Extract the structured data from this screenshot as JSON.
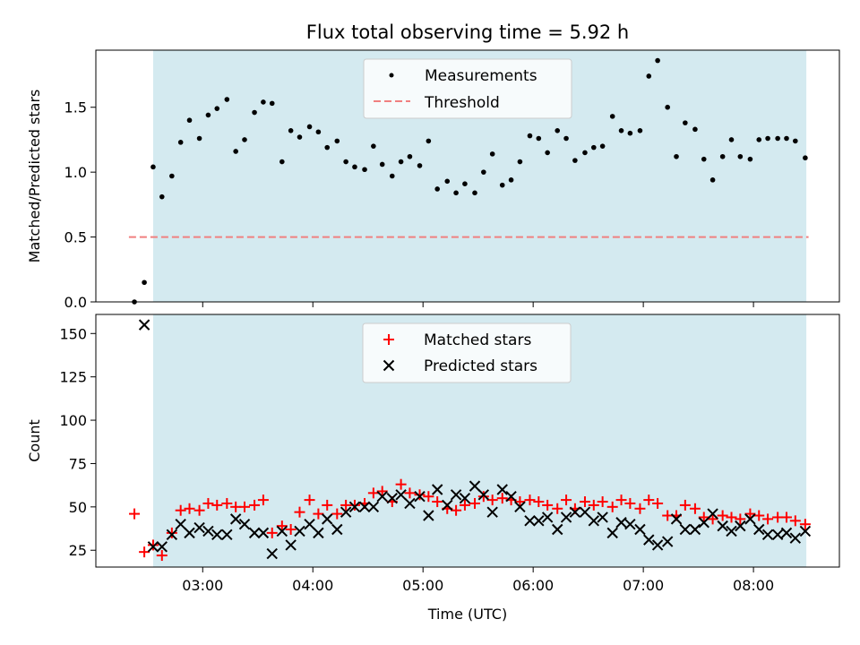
{
  "chart_data": [
    {
      "type": "scatter",
      "title": "Flux total observing time = 5.92 h",
      "xlabel": "",
      "ylabel": "Matched/Predicted stars",
      "xlim": [
        2.03,
        8.78
      ],
      "ylim": [
        0.0,
        1.94
      ],
      "xticks": [
        3,
        4,
        5,
        6,
        7,
        8
      ],
      "yticks": [
        {
          "value": 0.0,
          "label": "0.0"
        },
        {
          "value": 0.5,
          "label": "0.5"
        },
        {
          "value": 1.0,
          "label": "1.0"
        },
        {
          "value": 1.5,
          "label": "1.5"
        }
      ],
      "shaded_span": [
        2.55,
        8.48
      ],
      "shade_color": "#d4eaf0",
      "grid": false,
      "legend_position": "upper center",
      "legend": [
        {
          "label": "Measurements",
          "marker": "dot",
          "color": "#000000"
        },
        {
          "label": "Threshold",
          "marker": "dashed-line",
          "color": "#f08080"
        }
      ],
      "threshold": {
        "value": 0.5,
        "x_range": [
          2.33,
          8.5
        ],
        "color": "#f08080"
      },
      "series": [
        {
          "name": "Measurements",
          "color": "#000000",
          "points": [
            [
              2.38,
              0.0
            ],
            [
              2.47,
              0.15
            ],
            [
              2.55,
              1.04
            ],
            [
              2.63,
              0.81
            ],
            [
              2.72,
              0.97
            ],
            [
              2.8,
              1.23
            ],
            [
              2.88,
              1.4
            ],
            [
              2.97,
              1.26
            ],
            [
              3.05,
              1.44
            ],
            [
              3.13,
              1.49
            ],
            [
              3.22,
              1.56
            ],
            [
              3.3,
              1.16
            ],
            [
              3.38,
              1.25
            ],
            [
              3.47,
              1.46
            ],
            [
              3.55,
              1.54
            ],
            [
              3.63,
              1.53
            ],
            [
              3.72,
              1.08
            ],
            [
              3.8,
              1.32
            ],
            [
              3.88,
              1.27
            ],
            [
              3.97,
              1.35
            ],
            [
              4.05,
              1.31
            ],
            [
              4.13,
              1.19
            ],
            [
              4.22,
              1.24
            ],
            [
              4.3,
              1.08
            ],
            [
              4.38,
              1.04
            ],
            [
              4.47,
              1.02
            ],
            [
              4.55,
              1.2
            ],
            [
              4.63,
              1.06
            ],
            [
              4.72,
              0.97
            ],
            [
              4.8,
              1.08
            ],
            [
              4.88,
              1.12
            ],
            [
              4.97,
              1.05
            ],
            [
              5.05,
              1.24
            ],
            [
              5.13,
              0.87
            ],
            [
              5.22,
              0.93
            ],
            [
              5.3,
              0.84
            ],
            [
              5.38,
              0.91
            ],
            [
              5.47,
              0.84
            ],
            [
              5.55,
              1.0
            ],
            [
              5.63,
              1.14
            ],
            [
              5.72,
              0.9
            ],
            [
              5.8,
              0.94
            ],
            [
              5.88,
              1.08
            ],
            [
              5.97,
              1.28
            ],
            [
              6.05,
              1.26
            ],
            [
              6.13,
              1.15
            ],
            [
              6.22,
              1.32
            ],
            [
              6.3,
              1.26
            ],
            [
              6.38,
              1.09
            ],
            [
              6.47,
              1.15
            ],
            [
              6.55,
              1.19
            ],
            [
              6.63,
              1.2
            ],
            [
              6.72,
              1.43
            ],
            [
              6.8,
              1.32
            ],
            [
              6.88,
              1.3
            ],
            [
              6.97,
              1.32
            ],
            [
              7.05,
              1.74
            ],
            [
              7.13,
              1.86
            ],
            [
              7.22,
              1.5
            ],
            [
              7.3,
              1.12
            ],
            [
              7.38,
              1.38
            ],
            [
              7.47,
              1.33
            ],
            [
              7.55,
              1.1
            ],
            [
              7.63,
              0.94
            ],
            [
              7.72,
              1.12
            ],
            [
              7.8,
              1.25
            ],
            [
              7.88,
              1.12
            ],
            [
              7.97,
              1.1
            ],
            [
              8.05,
              1.25
            ],
            [
              8.13,
              1.26
            ],
            [
              8.22,
              1.26
            ],
            [
              8.3,
              1.26
            ],
            [
              8.38,
              1.24
            ],
            [
              8.47,
              1.11
            ]
          ]
        }
      ]
    },
    {
      "type": "scatter",
      "title": "",
      "xlabel": "Time (UTC)",
      "ylabel": "Count",
      "xlim": [
        2.03,
        8.78
      ],
      "ylim": [
        15.3,
        161.0
      ],
      "xticks": [
        3,
        4,
        5,
        6,
        7,
        8
      ],
      "xtick_labels": [
        "03:00",
        "04:00",
        "05:00",
        "06:00",
        "07:00",
        "08:00"
      ],
      "yticks": [
        25,
        50,
        75,
        100,
        125,
        150
      ],
      "shaded_span": [
        2.55,
        8.48
      ],
      "shade_color": "#d4eaf0",
      "grid": false,
      "legend_position": "upper center",
      "legend": [
        {
          "label": "Matched stars",
          "marker": "plus",
          "color": "#ff0000"
        },
        {
          "label": "Predicted stars",
          "marker": "x",
          "color": "#000000"
        }
      ],
      "series": [
        {
          "name": "Matched stars",
          "marker": "plus",
          "color": "#ff0000",
          "points": [
            [
              2.38,
              46
            ],
            [
              2.47,
              24
            ],
            [
              2.55,
              28
            ],
            [
              2.63,
              22
            ],
            [
              2.72,
              35
            ],
            [
              2.8,
              48
            ],
            [
              2.88,
              49
            ],
            [
              2.97,
              48
            ],
            [
              3.05,
              52
            ],
            [
              3.13,
              51
            ],
            [
              3.22,
              52
            ],
            [
              3.3,
              50
            ],
            [
              3.38,
              50
            ],
            [
              3.47,
              51
            ],
            [
              3.55,
              54
            ],
            [
              3.63,
              35
            ],
            [
              3.72,
              39
            ],
            [
              3.8,
              37
            ],
            [
              3.88,
              47
            ],
            [
              3.97,
              54
            ],
            [
              4.05,
              46
            ],
            [
              4.13,
              51
            ],
            [
              4.22,
              46
            ],
            [
              4.3,
              51
            ],
            [
              4.38,
              51
            ],
            [
              4.47,
              52
            ],
            [
              4.55,
              58
            ],
            [
              4.63,
              59
            ],
            [
              4.72,
              53
            ],
            [
              4.8,
              63
            ],
            [
              4.88,
              58
            ],
            [
              4.97,
              57
            ],
            [
              5.05,
              56
            ],
            [
              5.13,
              53
            ],
            [
              5.22,
              49
            ],
            [
              5.3,
              48
            ],
            [
              5.38,
              51
            ],
            [
              5.47,
              52
            ],
            [
              5.55,
              56
            ],
            [
              5.63,
              54
            ],
            [
              5.72,
              55
            ],
            [
              5.8,
              54
            ],
            [
              5.88,
              53
            ],
            [
              5.97,
              54
            ],
            [
              6.05,
              53
            ],
            [
              6.13,
              51
            ],
            [
              6.22,
              49
            ],
            [
              6.3,
              54
            ],
            [
              6.38,
              49
            ],
            [
              6.47,
              53
            ],
            [
              6.55,
              51
            ],
            [
              6.63,
              53
            ],
            [
              6.72,
              50
            ],
            [
              6.8,
              54
            ],
            [
              6.88,
              52
            ],
            [
              6.97,
              49
            ],
            [
              7.05,
              54
            ],
            [
              7.13,
              52
            ],
            [
              7.22,
              45
            ],
            [
              7.3,
              45
            ],
            [
              7.38,
              51
            ],
            [
              7.47,
              49
            ],
            [
              7.55,
              44
            ],
            [
              7.63,
              43
            ],
            [
              7.72,
              45
            ],
            [
              7.8,
              44
            ],
            [
              7.88,
              43
            ],
            [
              7.97,
              46
            ],
            [
              8.05,
              45
            ],
            [
              8.13,
              43
            ],
            [
              8.22,
              44
            ],
            [
              8.3,
              44
            ],
            [
              8.38,
              42
            ],
            [
              8.47,
              40
            ]
          ]
        },
        {
          "name": "Predicted stars",
          "marker": "x",
          "color": "#000000",
          "points": [
            [
              2.47,
              155
            ],
            [
              2.55,
              27
            ],
            [
              2.63,
              27
            ],
            [
              2.72,
              34
            ],
            [
              2.8,
              40
            ],
            [
              2.88,
              35
            ],
            [
              2.97,
              38
            ],
            [
              3.05,
              36
            ],
            [
              3.13,
              34
            ],
            [
              3.22,
              34
            ],
            [
              3.3,
              43
            ],
            [
              3.38,
              40
            ],
            [
              3.47,
              35
            ],
            [
              3.55,
              35
            ],
            [
              3.63,
              23
            ],
            [
              3.72,
              36
            ],
            [
              3.8,
              28
            ],
            [
              3.88,
              36
            ],
            [
              3.97,
              40
            ],
            [
              4.05,
              35
            ],
            [
              4.13,
              43
            ],
            [
              4.22,
              37
            ],
            [
              4.3,
              47
            ],
            [
              4.38,
              50
            ],
            [
              4.47,
              50
            ],
            [
              4.55,
              50
            ],
            [
              4.63,
              56
            ],
            [
              4.72,
              55
            ],
            [
              4.8,
              57
            ],
            [
              4.88,
              52
            ],
            [
              4.97,
              56
            ],
            [
              5.05,
              45
            ],
            [
              5.13,
              60
            ],
            [
              5.22,
              51
            ],
            [
              5.3,
              57
            ],
            [
              5.38,
              55
            ],
            [
              5.47,
              62
            ],
            [
              5.55,
              57
            ],
            [
              5.63,
              47
            ],
            [
              5.72,
              60
            ],
            [
              5.8,
              56
            ],
            [
              5.88,
              50
            ],
            [
              5.97,
              42
            ],
            [
              6.05,
              42
            ],
            [
              6.13,
              44
            ],
            [
              6.22,
              37
            ],
            [
              6.3,
              44
            ],
            [
              6.38,
              47
            ],
            [
              6.47,
              47
            ],
            [
              6.55,
              42
            ],
            [
              6.63,
              44
            ],
            [
              6.72,
              35
            ],
            [
              6.8,
              41
            ],
            [
              6.88,
              40
            ],
            [
              6.97,
              37
            ],
            [
              7.05,
              31
            ],
            [
              7.13,
              28
            ],
            [
              7.22,
              30
            ],
            [
              7.3,
              43
            ],
            [
              7.38,
              37
            ],
            [
              7.47,
              37
            ],
            [
              7.55,
              41
            ],
            [
              7.63,
              46
            ],
            [
              7.72,
              39
            ],
            [
              7.8,
              36
            ],
            [
              7.88,
              39
            ],
            [
              7.97,
              43
            ],
            [
              8.05,
              37
            ],
            [
              8.13,
              34
            ],
            [
              8.22,
              34
            ],
            [
              8.3,
              35
            ],
            [
              8.38,
              32
            ],
            [
              8.47,
              36
            ]
          ]
        }
      ]
    }
  ]
}
